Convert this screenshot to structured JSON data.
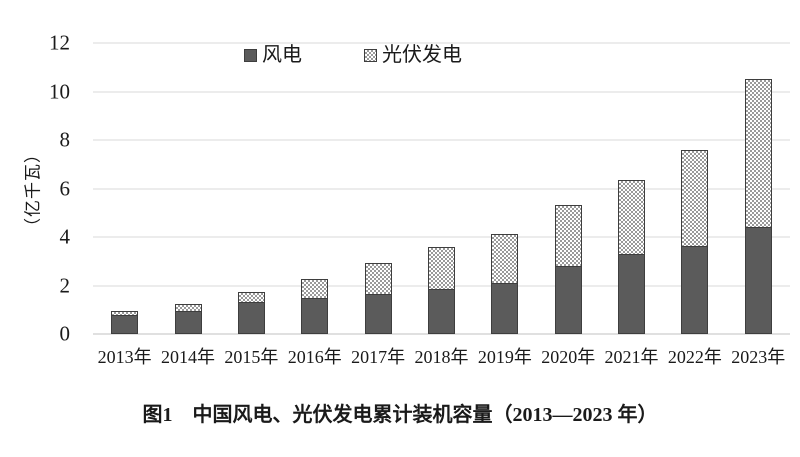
{
  "figure": {
    "caption": "图1　中国风电、光伏发电累计装机容量（2013—2023 年）"
  },
  "colors": {
    "wind_fill": "#5b5b5b",
    "segment_border": "#3e3e3e",
    "checker_gray": "#9a9a9a",
    "gridline": "#d9d9d9",
    "axis_line": "#c2c2c2",
    "text": "#1a1a1a"
  },
  "chart_data": {
    "type": "bar",
    "stacked": true,
    "title": "",
    "xlabel": "",
    "ylabel": "（亿千瓦）",
    "ylim": [
      0,
      12
    ],
    "yticks": [
      0,
      2,
      4,
      6,
      8,
      10,
      12
    ],
    "grid": true,
    "legend_position": "top-center",
    "categories": [
      "2013年",
      "2014年",
      "2015年",
      "2016年",
      "2017年",
      "2018年",
      "2019年",
      "2020年",
      "2021年",
      "2022年",
      "2023年"
    ],
    "series": [
      {
        "name": "风电",
        "style": "solid",
        "values": [
          0.77,
          0.96,
          1.31,
          1.49,
          1.64,
          1.84,
          2.1,
          2.81,
          3.28,
          3.65,
          4.41
        ]
      },
      {
        "name": "光伏发电",
        "style": "checker",
        "values": [
          0.19,
          0.28,
          0.43,
          0.77,
          1.3,
          1.74,
          2.04,
          2.53,
          3.06,
          3.93,
          6.09
        ]
      }
    ],
    "totals": [
      0.96,
      1.24,
      1.74,
      2.26,
      2.94,
      3.58,
      4.14,
      5.34,
      6.34,
      7.58,
      10.5
    ]
  }
}
